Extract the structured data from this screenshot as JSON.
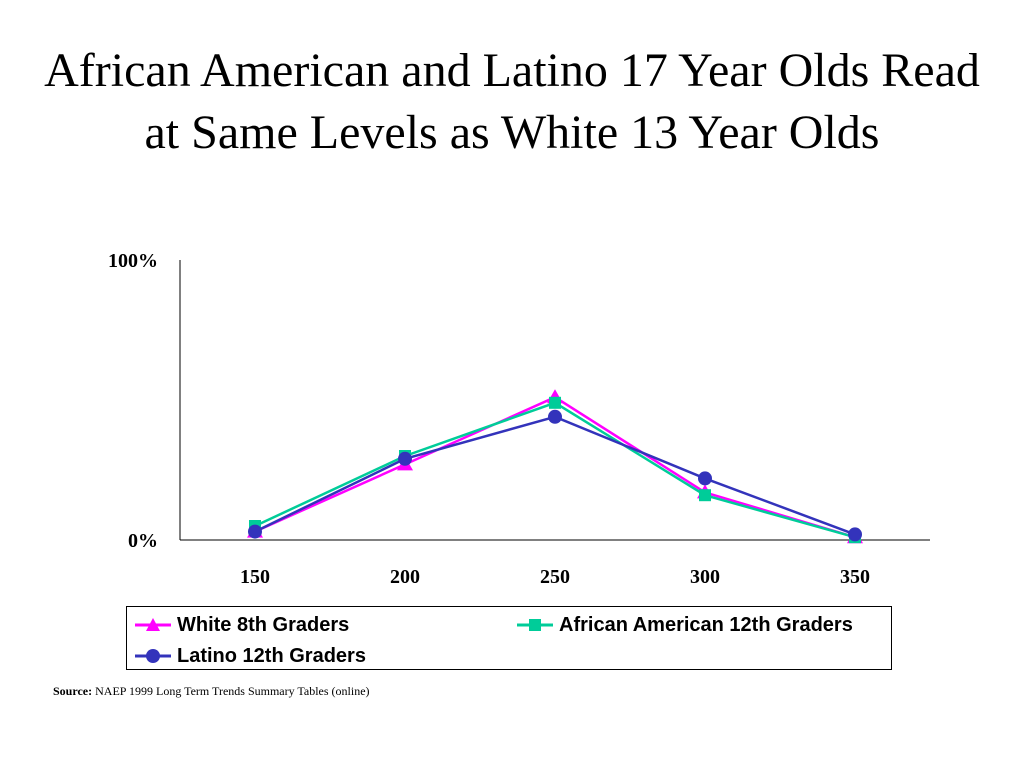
{
  "slide": {
    "title": "African American and Latino 17 Year Olds Read at Same Levels as White 13 Year Olds",
    "source_label": "Source:",
    "source_text": " NAEP 1999 Long Term Trends Summary Tables (online)"
  },
  "chart_data": {
    "type": "line",
    "x": [
      150,
      200,
      250,
      300,
      350
    ],
    "x_tick_labels": [
      "150",
      "200",
      "250",
      "300",
      "350"
    ],
    "y_tick_labels": [
      "0%",
      "100%"
    ],
    "ylim": [
      0,
      100
    ],
    "grid": false,
    "legend_placement": "bottom",
    "series": [
      {
        "name": "White 8th Graders",
        "marker": "triangle",
        "color": "#ff00ff",
        "values": [
          3,
          27,
          51,
          17,
          1
        ]
      },
      {
        "name": "African American 12th Graders",
        "marker": "square",
        "color": "#00cc99",
        "values": [
          5,
          30,
          49,
          16,
          1
        ]
      },
      {
        "name": "Latino 12th Graders",
        "marker": "circle",
        "color": "#3333bb",
        "values": [
          3,
          29,
          44,
          22,
          2
        ]
      }
    ]
  }
}
